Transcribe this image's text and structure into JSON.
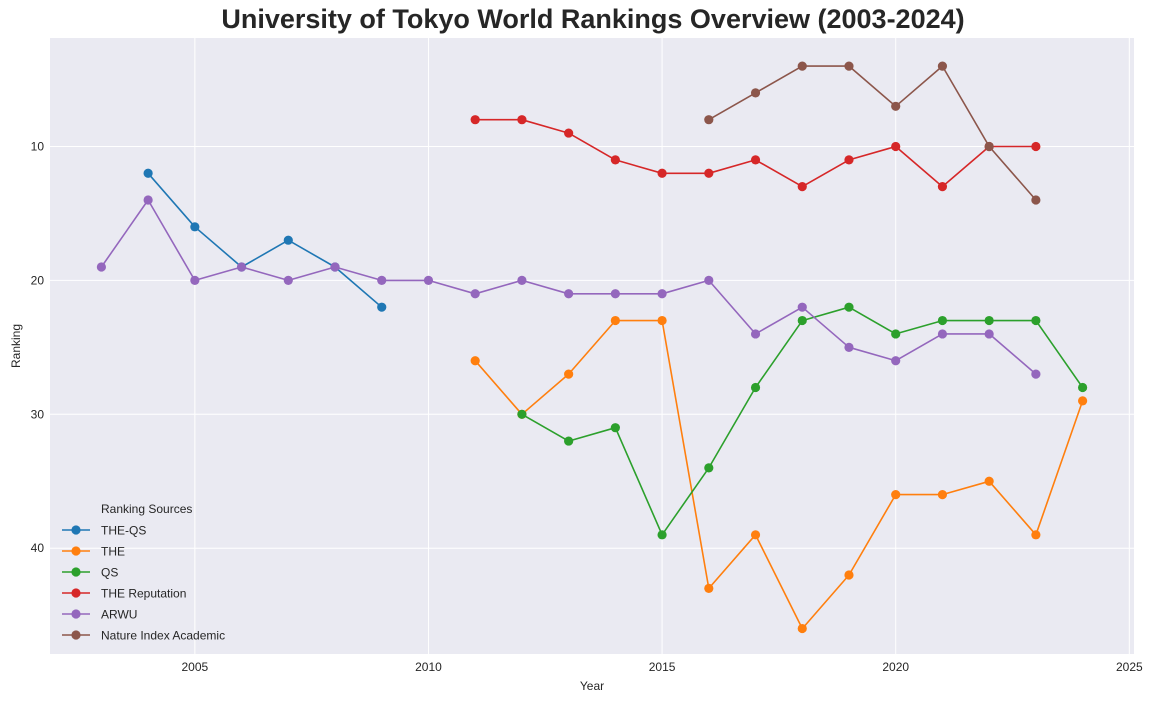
{
  "chart_data": {
    "type": "line",
    "title": "University of Tokyo World Rankings Overview (2003-2024)",
    "xlabel": "Year",
    "ylabel": "Ranking",
    "xlim": [
      2001.9,
      2025.1
    ],
    "ylim": [
      47.9,
      1.9
    ],
    "y_inverted": true,
    "grid": true,
    "x_ticks": [
      2005,
      2010,
      2015,
      2020,
      2025
    ],
    "y_ticks": [
      10,
      20,
      30,
      40
    ],
    "legend": {
      "title": "Ranking Sources",
      "placement": "lower-left"
    },
    "series": [
      {
        "name": "THE-QS",
        "color": "#1f77b4",
        "x": [
          2004,
          2005,
          2006,
          2007,
          2008,
          2009
        ],
        "values": [
          12,
          16,
          19,
          17,
          19,
          22
        ]
      },
      {
        "name": "THE",
        "color": "#ff7f0e",
        "x": [
          2011,
          2012,
          2013,
          2014,
          2015,
          2016,
          2017,
          2018,
          2019,
          2020,
          2021,
          2022,
          2023,
          2024
        ],
        "values": [
          26,
          30,
          27,
          23,
          23,
          43,
          39,
          46,
          42,
          36,
          36,
          35,
          39,
          29
        ]
      },
      {
        "name": "QS",
        "color": "#2ca02c",
        "x": [
          2012,
          2013,
          2014,
          2015,
          2016,
          2017,
          2018,
          2019,
          2020,
          2021,
          2022,
          2023,
          2024
        ],
        "values": [
          30,
          32,
          31,
          39,
          34,
          28,
          23,
          22,
          24,
          23,
          23,
          23,
          28
        ]
      },
      {
        "name": "THE Reputation",
        "color": "#d62728",
        "x": [
          2011,
          2012,
          2013,
          2014,
          2015,
          2016,
          2017,
          2018,
          2019,
          2020,
          2021,
          2022,
          2023
        ],
        "values": [
          8,
          8,
          9,
          11,
          12,
          12,
          11,
          13,
          11,
          10,
          13,
          10,
          10
        ]
      },
      {
        "name": "ARWU",
        "color": "#9467bd",
        "x": [
          2003,
          2004,
          2005,
          2006,
          2007,
          2008,
          2009,
          2010,
          2011,
          2012,
          2013,
          2014,
          2015,
          2016,
          2017,
          2018,
          2019,
          2020,
          2021,
          2022,
          2023
        ],
        "values": [
          19,
          14,
          20,
          19,
          20,
          19,
          20,
          20,
          21,
          20,
          21,
          21,
          21,
          20,
          24,
          22,
          25,
          26,
          24,
          24,
          27
        ]
      },
      {
        "name": "Nature Index Academic",
        "color": "#8c564b",
        "x": [
          2016,
          2017,
          2018,
          2019,
          2020,
          2021,
          2022,
          2023
        ],
        "values": [
          8,
          6,
          4,
          4,
          7,
          4,
          10,
          14
        ]
      }
    ]
  }
}
